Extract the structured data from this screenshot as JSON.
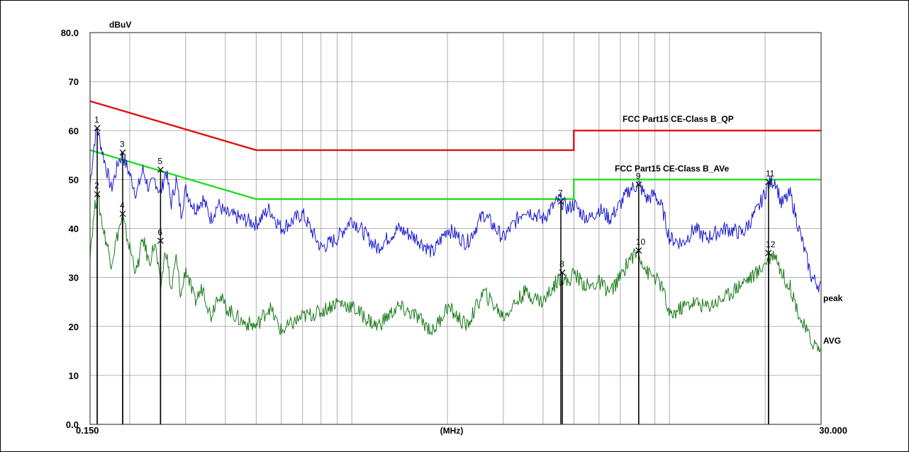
{
  "chart_data": {
    "type": "line",
    "title": "",
    "ylabel": "dBuV",
    "xlabel": "(MHz)",
    "x_scale": "log",
    "xlim": [
      0.15,
      30
    ],
    "ylim": [
      0,
      80
    ],
    "x_tick_labels": [
      "0.150",
      "30.000"
    ],
    "y_ticks": [
      {
        "value": 0,
        "label": "0.0"
      },
      {
        "value": 10,
        "label": "10"
      },
      {
        "value": 20,
        "label": "20"
      },
      {
        "value": 30,
        "label": "30"
      },
      {
        "value": 40,
        "label": "40"
      },
      {
        "value": 50,
        "label": "50"
      },
      {
        "value": 60,
        "label": "60"
      },
      {
        "value": 70,
        "label": "70"
      },
      {
        "value": 80,
        "label": "80.0"
      }
    ],
    "grid": true,
    "limit_lines": [
      {
        "name": "FCC Part15 CE-Class B_QP",
        "color": "#e01010",
        "points": [
          [
            0.15,
            66
          ],
          [
            0.5,
            56
          ],
          [
            5,
            56
          ],
          [
            5,
            60
          ],
          [
            30,
            60
          ]
        ]
      },
      {
        "name": "FCC Part15 CE-Class B_AVe",
        "color": "#22dd22",
        "points": [
          [
            0.15,
            56
          ],
          [
            0.5,
            46
          ],
          [
            5,
            46
          ],
          [
            5,
            50
          ],
          [
            30,
            50
          ]
        ]
      }
    ],
    "series": [
      {
        "name": "peak",
        "color": "#1a1ad0",
        "x": [
          0.15,
          0.155,
          0.158,
          0.165,
          0.175,
          0.185,
          0.19,
          0.2,
          0.21,
          0.22,
          0.23,
          0.24,
          0.25,
          0.26,
          0.27,
          0.28,
          0.29,
          0.3,
          0.32,
          0.34,
          0.36,
          0.38,
          0.4,
          0.45,
          0.5,
          0.55,
          0.6,
          0.7,
          0.8,
          0.9,
          1.0,
          1.2,
          1.4,
          1.6,
          1.8,
          2.0,
          2.3,
          2.6,
          3.0,
          3.5,
          4.0,
          4.5,
          4.8,
          5.0,
          5.3,
          5.6,
          6.0,
          6.5,
          7.0,
          7.5,
          8.0,
          8.5,
          9.0,
          9.5,
          10.0,
          11.0,
          12.0,
          13.0,
          15.0,
          17.0,
          19.0,
          20.5,
          21.5,
          22.5,
          24.0,
          26.0,
          28.0,
          30.0
        ],
        "values": [
          49,
          58,
          60.5,
          55,
          48,
          54,
          55,
          51,
          47,
          52,
          48,
          50,
          47,
          52,
          45,
          50,
          43,
          48,
          44,
          46,
          42,
          45,
          43,
          42,
          41,
          44,
          40,
          43,
          36,
          38,
          42,
          36,
          40,
          38,
          35,
          40,
          37,
          43,
          38,
          44,
          42,
          46,
          44,
          45,
          43,
          42,
          44,
          42,
          45,
          48,
          49,
          46,
          47,
          44,
          38,
          37,
          40,
          38,
          40,
          39,
          44,
          49,
          50,
          45,
          47,
          38,
          30,
          28
        ]
      },
      {
        "name": "AVG",
        "color": "#1a7a1a",
        "x": [
          0.15,
          0.155,
          0.158,
          0.165,
          0.175,
          0.185,
          0.19,
          0.2,
          0.21,
          0.22,
          0.23,
          0.24,
          0.25,
          0.26,
          0.27,
          0.28,
          0.29,
          0.3,
          0.32,
          0.34,
          0.36,
          0.38,
          0.4,
          0.45,
          0.5,
          0.55,
          0.6,
          0.7,
          0.8,
          0.9,
          1.0,
          1.2,
          1.4,
          1.6,
          1.8,
          2.0,
          2.3,
          2.6,
          3.0,
          3.5,
          4.0,
          4.5,
          4.8,
          5.0,
          5.3,
          5.6,
          6.0,
          6.5,
          7.0,
          7.5,
          8.0,
          8.5,
          9.0,
          9.5,
          10.0,
          11.0,
          12.0,
          13.0,
          15.0,
          17.0,
          19.0,
          20.5,
          21.5,
          22.5,
          24.0,
          26.0,
          28.0,
          30.0
        ],
        "values": [
          35,
          44,
          47,
          40,
          33,
          40,
          42,
          36,
          31,
          38,
          33,
          37,
          28,
          36,
          27,
          34,
          26,
          32,
          25,
          28,
          22,
          27,
          24,
          21,
          20,
          24,
          19,
          22,
          23,
          25,
          24,
          20,
          24,
          22,
          19,
          24,
          20,
          27,
          22,
          27,
          25,
          30,
          29,
          31,
          29,
          28,
          29,
          27,
          30,
          34,
          35,
          31,
          30,
          28,
          22,
          24,
          25,
          24,
          26,
          29,
          31,
          34,
          35,
          31,
          28,
          21,
          17,
          15
        ]
      }
    ],
    "markers": [
      {
        "label": "1",
        "x": 0.158,
        "y": 60.5
      },
      {
        "label": "2",
        "x": 0.158,
        "y": 47
      },
      {
        "label": "3",
        "x": 0.19,
        "y": 55.5
      },
      {
        "label": "4",
        "x": 0.19,
        "y": 43
      },
      {
        "label": "5",
        "x": 0.25,
        "y": 52
      },
      {
        "label": "6",
        "x": 0.25,
        "y": 37.5
      },
      {
        "label": "7",
        "x": 4.55,
        "y": 45.5
      },
      {
        "label": "8",
        "x": 4.6,
        "y": 31
      },
      {
        "label": "9",
        "x": 8.0,
        "y": 49
      },
      {
        "label": "10",
        "x": 8.0,
        "y": 35.5
      },
      {
        "label": "11",
        "x": 20.5,
        "y": 49.5
      },
      {
        "label": "12",
        "x": 20.5,
        "y": 35
      }
    ],
    "limit_labels": [
      "FCC Part15 CE-Class B_QP",
      "FCC Part15 CE-Class B_AVe"
    ],
    "series_labels": [
      "peak",
      "AVG"
    ]
  }
}
